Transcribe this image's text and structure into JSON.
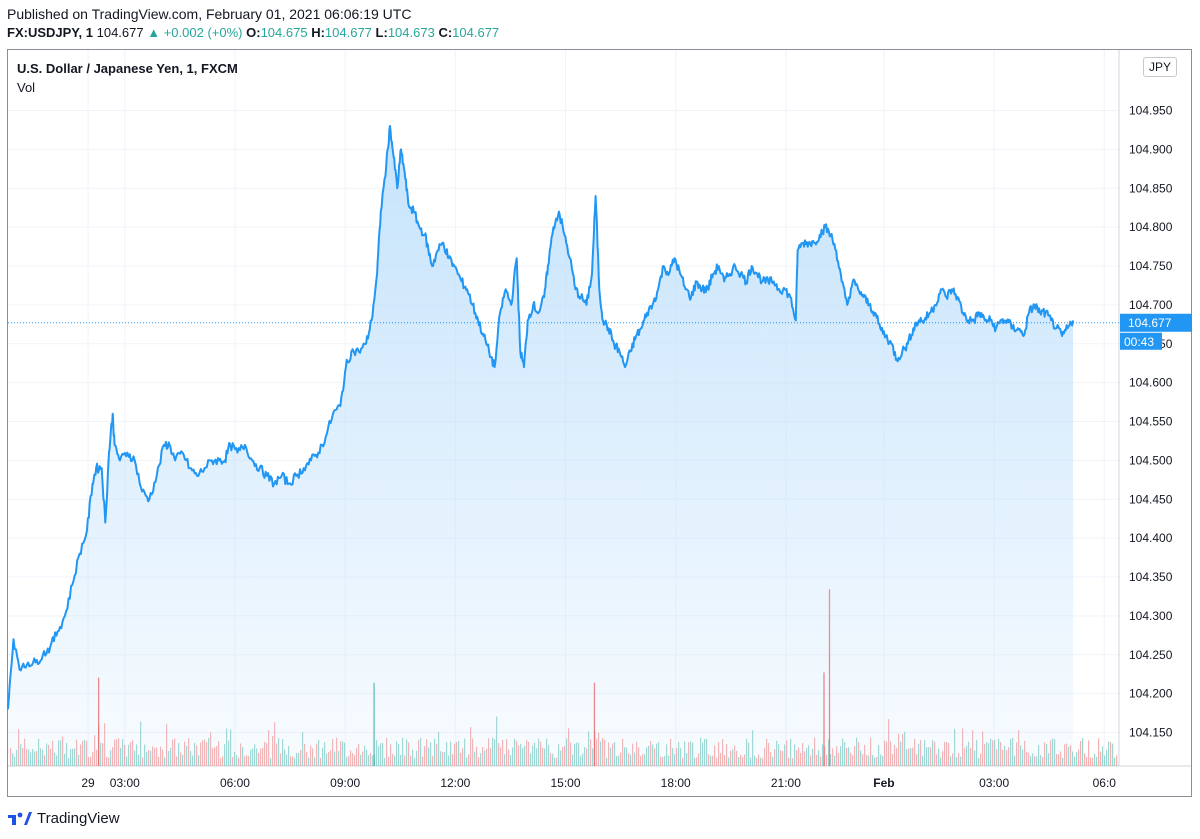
{
  "header": {
    "published": "Published on TradingView.com, February 01, 2021 06:06:19 UTC",
    "symbol": "FX:USDJPY, 1",
    "last": "104.677",
    "change": "▲ +0.002 (+0%)",
    "open_label": "O:",
    "open": "104.675",
    "high_label": "H:",
    "high": "104.677",
    "low_label": "L:",
    "low": "104.673",
    "close_label": "C:",
    "close": "104.677"
  },
  "legend": {
    "title": "U.S. Dollar / Japanese Yen, 1, FXCM",
    "vol": "Vol"
  },
  "currency_badge": "JPY",
  "price_badge": "104.677",
  "countdown_badge": "00:43",
  "brand": "TradingView",
  "colors": {
    "line": "#2196f3",
    "area_top": "#bbdefb",
    "vol_up": "#26a69a",
    "vol_down": "#ef5350",
    "grid": "#f0f3fa",
    "badge_bg": "#2196f3"
  },
  "chart_data": {
    "type": "area",
    "title": "U.S. Dollar / Japanese Yen, 1, FXCM",
    "ylim": [
      104.125,
      105.0
    ],
    "y_ticks": [
      "104.150",
      "104.200",
      "104.250",
      "104.300",
      "104.350",
      "104.400",
      "104.450",
      "104.500",
      "104.550",
      "104.600",
      "104.650",
      "104.700",
      "104.750",
      "104.800",
      "104.850",
      "104.900",
      "104.950"
    ],
    "x_ticks": [
      {
        "hours": 2.33,
        "label": "29"
      },
      {
        "hours": 3.33,
        "label": "03:00"
      },
      {
        "hours": 6.33,
        "label": "06:00"
      },
      {
        "hours": 9.33,
        "label": "09:00"
      },
      {
        "hours": 12.33,
        "label": "12:00"
      },
      {
        "hours": 15.33,
        "label": "15:00"
      },
      {
        "hours": 18.33,
        "label": "18:00"
      },
      {
        "hours": 21.33,
        "label": "21:00"
      },
      {
        "hours": 24.0,
        "label": "Feb"
      },
      {
        "hours": 27.0,
        "label": "03:00"
      },
      {
        "hours": 30.0,
        "label": "06:0"
      }
    ],
    "x_range_hours": [
      0.15,
      30.4
    ],
    "current_value": 104.677,
    "series": [
      {
        "name": "FX:USDJPY",
        "points": [
          [
            0.15,
            104.18
          ],
          [
            0.3,
            104.27
          ],
          [
            0.5,
            104.23
          ],
          [
            0.7,
            104.24
          ],
          [
            0.9,
            104.24
          ],
          [
            1.1,
            104.25
          ],
          [
            1.3,
            104.26
          ],
          [
            1.5,
            104.28
          ],
          [
            1.7,
            104.3
          ],
          [
            1.9,
            104.34
          ],
          [
            2.1,
            104.38
          ],
          [
            2.3,
            104.41
          ],
          [
            2.45,
            104.47
          ],
          [
            2.55,
            104.49
          ],
          [
            2.7,
            104.49
          ],
          [
            2.8,
            104.42
          ],
          [
            2.9,
            104.51
          ],
          [
            3.0,
            104.56
          ],
          [
            3.05,
            104.52
          ],
          [
            3.2,
            104.5
          ],
          [
            3.4,
            104.51
          ],
          [
            3.6,
            104.5
          ],
          [
            3.8,
            104.46
          ],
          [
            4.0,
            104.45
          ],
          [
            4.2,
            104.48
          ],
          [
            4.4,
            104.52
          ],
          [
            4.55,
            104.52
          ],
          [
            4.7,
            104.5
          ],
          [
            4.9,
            104.51
          ],
          [
            5.1,
            104.49
          ],
          [
            5.3,
            104.48
          ],
          [
            5.5,
            104.49
          ],
          [
            5.7,
            104.5
          ],
          [
            5.9,
            104.5
          ],
          [
            6.05,
            104.5
          ],
          [
            6.2,
            104.52
          ],
          [
            6.4,
            104.51
          ],
          [
            6.6,
            104.52
          ],
          [
            6.8,
            104.5
          ],
          [
            7.0,
            104.49
          ],
          [
            7.2,
            104.48
          ],
          [
            7.4,
            104.47
          ],
          [
            7.6,
            104.48
          ],
          [
            7.8,
            104.47
          ],
          [
            8.0,
            104.48
          ],
          [
            8.2,
            104.49
          ],
          [
            8.4,
            104.5
          ],
          [
            8.6,
            104.51
          ],
          [
            8.8,
            104.53
          ],
          [
            9.0,
            104.56
          ],
          [
            9.2,
            104.57
          ],
          [
            9.35,
            104.62
          ],
          [
            9.5,
            104.64
          ],
          [
            9.7,
            104.64
          ],
          [
            9.9,
            104.65
          ],
          [
            10.05,
            104.68
          ],
          [
            10.2,
            104.74
          ],
          [
            10.3,
            104.82
          ],
          [
            10.45,
            104.88
          ],
          [
            10.55,
            104.93
          ],
          [
            10.65,
            104.89
          ],
          [
            10.75,
            104.85
          ],
          [
            10.85,
            104.9
          ],
          [
            10.95,
            104.87
          ],
          [
            11.05,
            104.83
          ],
          [
            11.2,
            104.82
          ],
          [
            11.35,
            104.8
          ],
          [
            11.5,
            104.79
          ],
          [
            11.6,
            104.77
          ],
          [
            11.7,
            104.75
          ],
          [
            11.85,
            104.77
          ],
          [
            12.0,
            104.78
          ],
          [
            12.15,
            104.76
          ],
          [
            12.3,
            104.75
          ],
          [
            12.5,
            104.73
          ],
          [
            12.65,
            104.72
          ],
          [
            12.8,
            104.7
          ],
          [
            12.95,
            104.68
          ],
          [
            13.1,
            104.66
          ],
          [
            13.25,
            104.64
          ],
          [
            13.4,
            104.62
          ],
          [
            13.55,
            104.69
          ],
          [
            13.7,
            104.72
          ],
          [
            13.85,
            104.7
          ],
          [
            14.0,
            104.76
          ],
          [
            14.1,
            104.64
          ],
          [
            14.2,
            104.62
          ],
          [
            14.3,
            104.68
          ],
          [
            14.45,
            104.7
          ],
          [
            14.6,
            104.69
          ],
          [
            14.75,
            104.71
          ],
          [
            14.85,
            104.75
          ],
          [
            15.0,
            104.8
          ],
          [
            15.15,
            104.82
          ],
          [
            15.3,
            104.79
          ],
          [
            15.45,
            104.76
          ],
          [
            15.6,
            104.72
          ],
          [
            15.75,
            104.71
          ],
          [
            15.9,
            104.7
          ],
          [
            16.05,
            104.74
          ],
          [
            16.15,
            104.84
          ],
          [
            16.25,
            104.72
          ],
          [
            16.35,
            104.68
          ],
          [
            16.5,
            104.67
          ],
          [
            16.65,
            104.65
          ],
          [
            16.8,
            104.64
          ],
          [
            16.95,
            104.62
          ],
          [
            17.1,
            104.64
          ],
          [
            17.25,
            104.66
          ],
          [
            17.4,
            104.67
          ],
          [
            17.55,
            104.69
          ],
          [
            17.7,
            104.7
          ],
          [
            17.85,
            104.72
          ],
          [
            18.0,
            104.75
          ],
          [
            18.15,
            104.74
          ],
          [
            18.3,
            104.76
          ],
          [
            18.45,
            104.74
          ],
          [
            18.6,
            104.72
          ],
          [
            18.75,
            104.71
          ],
          [
            18.9,
            104.73
          ],
          [
            19.05,
            104.72
          ],
          [
            19.2,
            104.72
          ],
          [
            19.35,
            104.74
          ],
          [
            19.5,
            104.75
          ],
          [
            19.65,
            104.73
          ],
          [
            19.8,
            104.74
          ],
          [
            19.95,
            104.75
          ],
          [
            20.1,
            104.74
          ],
          [
            20.25,
            104.73
          ],
          [
            20.4,
            104.75
          ],
          [
            20.55,
            104.74
          ],
          [
            20.7,
            104.73
          ],
          [
            20.85,
            104.73
          ],
          [
            21.0,
            104.73
          ],
          [
            21.15,
            104.72
          ],
          [
            21.3,
            104.72
          ],
          [
            21.45,
            104.71
          ],
          [
            21.6,
            104.68
          ],
          [
            21.65,
            104.77
          ],
          [
            21.8,
            104.78
          ],
          [
            21.95,
            104.78
          ],
          [
            22.1,
            104.78
          ],
          [
            22.25,
            104.79
          ],
          [
            22.4,
            104.8
          ],
          [
            22.55,
            104.79
          ],
          [
            22.7,
            104.77
          ],
          [
            22.85,
            104.73
          ],
          [
            23.0,
            104.7
          ],
          [
            23.15,
            104.73
          ],
          [
            23.3,
            104.72
          ],
          [
            23.45,
            104.71
          ],
          [
            23.6,
            104.7
          ],
          [
            23.75,
            104.69
          ],
          [
            23.9,
            104.67
          ],
          [
            24.05,
            104.66
          ],
          [
            24.2,
            104.65
          ],
          [
            24.35,
            104.63
          ],
          [
            24.5,
            104.64
          ],
          [
            24.65,
            104.65
          ],
          [
            24.8,
            104.67
          ],
          [
            24.95,
            104.68
          ],
          [
            25.1,
            104.68
          ],
          [
            25.25,
            104.69
          ],
          [
            25.4,
            104.7
          ],
          [
            25.55,
            104.72
          ],
          [
            25.7,
            104.71
          ],
          [
            25.85,
            104.72
          ],
          [
            26.0,
            104.71
          ],
          [
            26.15,
            104.69
          ],
          [
            26.3,
            104.68
          ],
          [
            26.45,
            104.68
          ],
          [
            26.6,
            104.69
          ],
          [
            26.75,
            104.68
          ],
          [
            26.9,
            104.68
          ],
          [
            27.05,
            104.67
          ],
          [
            27.2,
            104.68
          ],
          [
            27.35,
            104.68
          ],
          [
            27.5,
            104.67
          ],
          [
            27.65,
            104.67
          ],
          [
            27.8,
            104.66
          ],
          [
            27.95,
            104.69
          ],
          [
            28.1,
            104.7
          ],
          [
            28.25,
            104.69
          ],
          [
            28.4,
            104.69
          ],
          [
            28.55,
            104.68
          ],
          [
            28.7,
            104.67
          ],
          [
            28.85,
            104.66
          ],
          [
            29.0,
            104.67
          ],
          [
            29.15,
            104.68
          ]
        ]
      }
    ],
    "volume_series": {
      "name": "Vol",
      "spikes": [
        {
          "hours": 2.6,
          "value": 0.17,
          "up": false
        },
        {
          "hours": 10.1,
          "value": 0.16,
          "up": true
        },
        {
          "hours": 16.1,
          "value": 0.16,
          "up": false
        },
        {
          "hours": 22.5,
          "value": 0.34,
          "up": false
        },
        {
          "hours": 22.35,
          "value": 0.18,
          "up": false
        }
      ]
    }
  }
}
